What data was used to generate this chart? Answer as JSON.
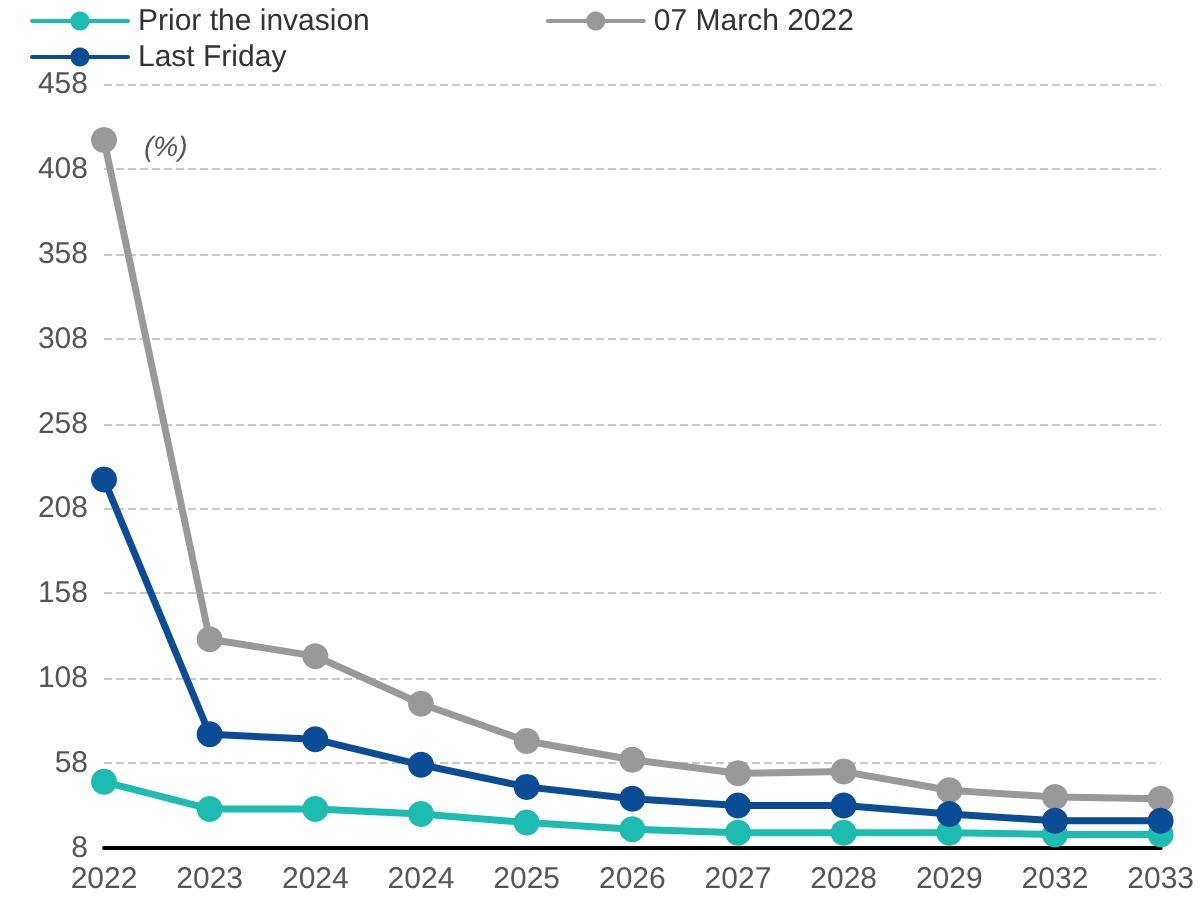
{
  "chart_data": {
    "type": "line",
    "categories": [
      "2022",
      "2023",
      "2024",
      "2024",
      "2025",
      "2026",
      "2027",
      "2028",
      "2029",
      "2032",
      "2033"
    ],
    "series": [
      {
        "name": "Prior the invasion",
        "color": "#1cbcb0",
        "values": [
          47,
          31,
          31,
          28,
          23,
          19,
          17,
          17,
          17,
          16,
          16
        ]
      },
      {
        "name": "07 March 2022",
        "color": "#999999",
        "values": [
          425,
          131,
          121,
          93,
          71,
          60,
          52,
          53,
          42,
          38,
          37
        ]
      },
      {
        "name": "Last Friday",
        "color": "#0b4c96",
        "values": [
          225,
          75,
          72,
          57,
          44,
          37,
          33,
          33,
          28,
          24,
          24
        ]
      }
    ],
    "ylim": [
      8,
      458
    ],
    "yticks": [
      8,
      58,
      108,
      158,
      208,
      258,
      308,
      358,
      408,
      458
    ],
    "annotations": [
      "(%)"
    ],
    "grid": "y",
    "legend": "top left",
    "marker": "circle",
    "line_style": "solid"
  }
}
